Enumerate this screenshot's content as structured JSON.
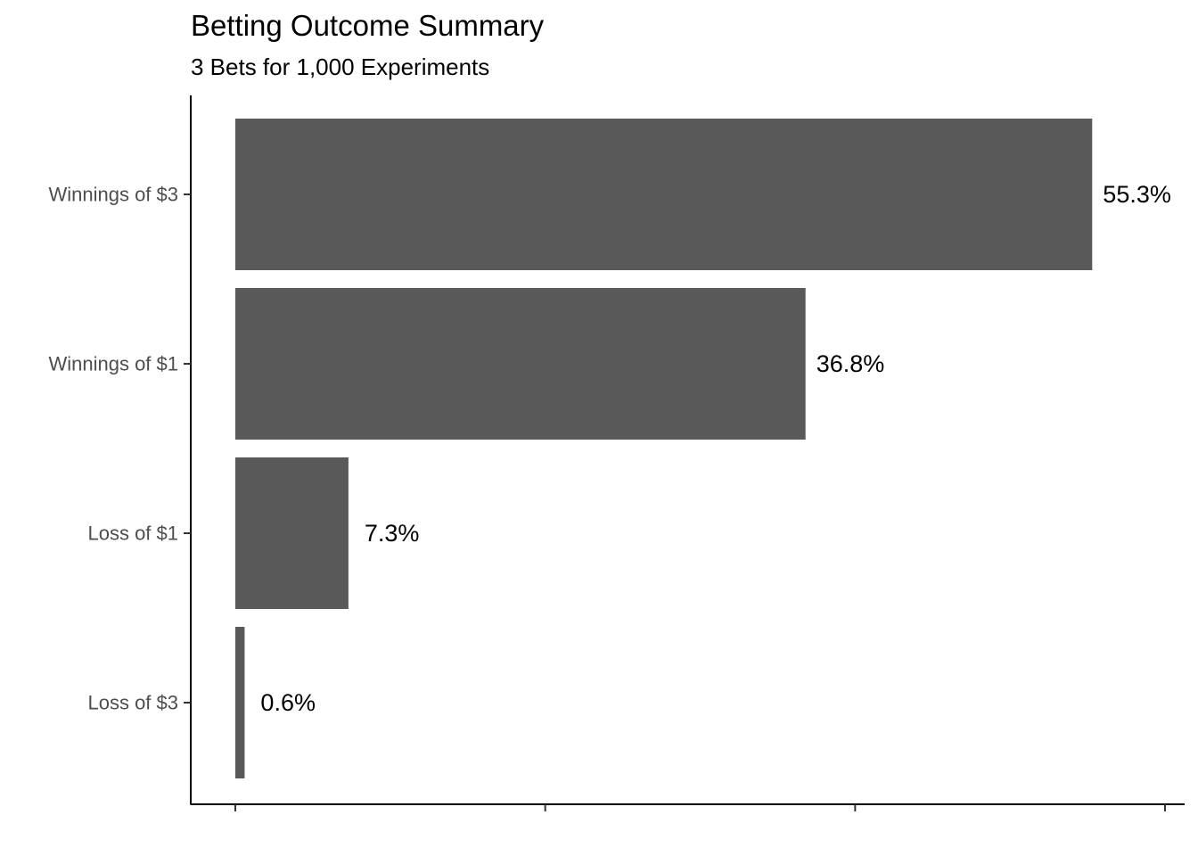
{
  "chart_data": {
    "type": "bar",
    "orientation": "horizontal",
    "title": "Betting Outcome Summary",
    "subtitle": "3 Bets for 1,000 Experiments",
    "categories": [
      "Winnings of $3",
      "Winnings of $1",
      "Loss of $1",
      "Loss of $3"
    ],
    "values": [
      55.3,
      36.8,
      7.3,
      0.6
    ],
    "data_labels": [
      "55.3%",
      "36.8%",
      "7.3%",
      "0.6%"
    ],
    "xlim": [
      0,
      60
    ],
    "x_tick_values": [
      0,
      20,
      40,
      60
    ],
    "x_tick_labels_visible": false,
    "grid": false,
    "legend": "none",
    "bar_color": "#595959"
  }
}
